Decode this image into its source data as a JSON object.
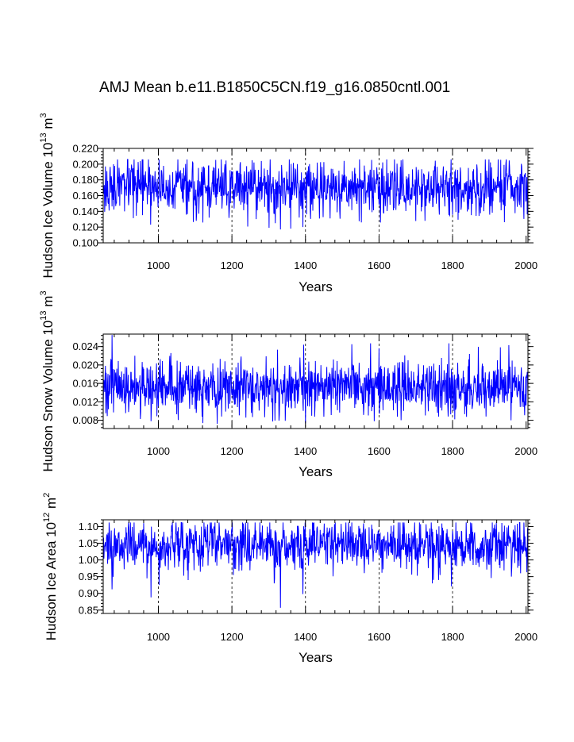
{
  "title": "AMJ Mean b.e11.B1850C5CN.f19_g16.0850cntl.001",
  "chart_data": [
    {
      "type": "line",
      "name": "ice-volume",
      "ylabel": "Hudson Ice Volume 10",
      "ylabel_exp": "13",
      "ylabel_unit": "m",
      "ylabel_unit_exp": "3",
      "xlabel": "Years",
      "xlim": [
        850,
        2005
      ],
      "ylim": [
        0.1,
        0.22
      ],
      "xticks": [
        1000,
        1200,
        1400,
        1600,
        1800,
        2000
      ],
      "xtick_labels": [
        "1000",
        "1200",
        "1400",
        "1600",
        "1800",
        "2000"
      ],
      "yticks": [
        0.1,
        0.12,
        0.14,
        0.16,
        0.18,
        0.2,
        0.22
      ],
      "ytick_labels": [
        "0.100",
        "0.120",
        "0.140",
        "0.160",
        "0.180",
        "0.200",
        "0.220"
      ],
      "grid_x": [
        1000,
        1200,
        1400,
        1600,
        1800
      ],
      "series": {
        "name": "Hudson Ice Volume",
        "color": "#0000ff",
        "x_start": 850,
        "x_end": 2005,
        "mean": 0.17,
        "amp": 0.017,
        "range_observed": [
          0.117,
          0.206
        ],
        "extremes": [
          [
            1332,
            0.117
          ],
          [
            1393,
            0.12
          ],
          [
            1318,
            0.125
          ],
          [
            1255,
            0.205
          ],
          [
            1665,
            0.206
          ],
          [
            1280,
            0.204
          ],
          [
            1725,
            0.128
          ],
          [
            1945,
            0.201
          ],
          [
            866,
            0.141
          ],
          [
            878,
            0.2
          ]
        ]
      }
    },
    {
      "type": "line",
      "name": "snow-volume",
      "ylabel": "Hudson Snow Volume 10",
      "ylabel_exp": "13",
      "ylabel_unit": "m",
      "ylabel_unit_exp": "3",
      "xlabel": "Years",
      "xlim": [
        850,
        2005
      ],
      "ylim": [
        0.0062,
        0.0267
      ],
      "xticks": [
        1000,
        1200,
        1400,
        1600,
        1800,
        2000
      ],
      "xtick_labels": [
        "1000",
        "1200",
        "1400",
        "1600",
        "1800",
        "2000"
      ],
      "yticks": [
        0.008,
        0.012,
        0.016,
        0.02,
        0.024
      ],
      "ytick_labels": [
        "0.008",
        "0.012",
        "0.016",
        "0.020",
        "0.024"
      ],
      "grid_x": [
        1000,
        1200,
        1400,
        1600,
        1800
      ],
      "series": {
        "name": "Hudson Snow Volume",
        "color": "#0000ff",
        "x_start": 850,
        "x_end": 2005,
        "mean": 0.0152,
        "amp": 0.0029,
        "range_observed": [
          0.0072,
          0.0265
        ],
        "extremes": [
          [
            874,
            0.0265
          ],
          [
            878,
            0.0097
          ],
          [
            1577,
            0.0247
          ],
          [
            1587,
            0.0078
          ],
          [
            1790,
            0.0247
          ],
          [
            1395,
            0.0244
          ],
          [
            1400,
            0.0073
          ],
          [
            1328,
            0.0079
          ],
          [
            980,
            0.0078
          ],
          [
            1600,
            0.0236
          ],
          [
            1953,
            0.0243
          ],
          [
            1806,
            0.0082
          ]
        ]
      }
    },
    {
      "type": "line",
      "name": "ice-area",
      "ylabel": "Hudson Ice Area 10",
      "ylabel_exp": "12",
      "ylabel_unit": "m",
      "ylabel_unit_exp": "2",
      "xlabel": "Years",
      "xlim": [
        850,
        2005
      ],
      "ylim": [
        0.84,
        1.12
      ],
      "xticks": [
        1000,
        1200,
        1400,
        1600,
        1800,
        2000
      ],
      "xtick_labels": [
        "1000",
        "1200",
        "1400",
        "1600",
        "1800",
        "2000"
      ],
      "yticks": [
        0.85,
        0.9,
        0.95,
        1.0,
        1.05,
        1.1
      ],
      "ytick_labels": [
        "0.85",
        "0.90",
        "0.95",
        "1.00",
        "1.05",
        "1.10"
      ],
      "grid_x": [
        1000,
        1200,
        1400,
        1600,
        1800
      ],
      "series": {
        "name": "Hudson Ice Area",
        "color": "#0000ff",
        "x_start": 850,
        "x_end": 2005,
        "mean": 1.045,
        "amp": 0.035,
        "range_observed": [
          0.857,
          1.112
        ],
        "extremes": [
          [
            1332,
            0.857
          ],
          [
            1393,
            0.898
          ],
          [
            980,
            0.888
          ],
          [
            874,
            0.912
          ],
          [
            1002,
            0.925
          ],
          [
            1315,
            0.93
          ],
          [
            1745,
            0.93
          ],
          [
            1797,
            0.921
          ],
          [
            1762,
            0.94
          ],
          [
            1905,
            0.946
          ],
          [
            1960,
            0.95
          ],
          [
            866,
            1.112
          ],
          [
            1378,
            1.102
          ]
        ]
      }
    }
  ]
}
